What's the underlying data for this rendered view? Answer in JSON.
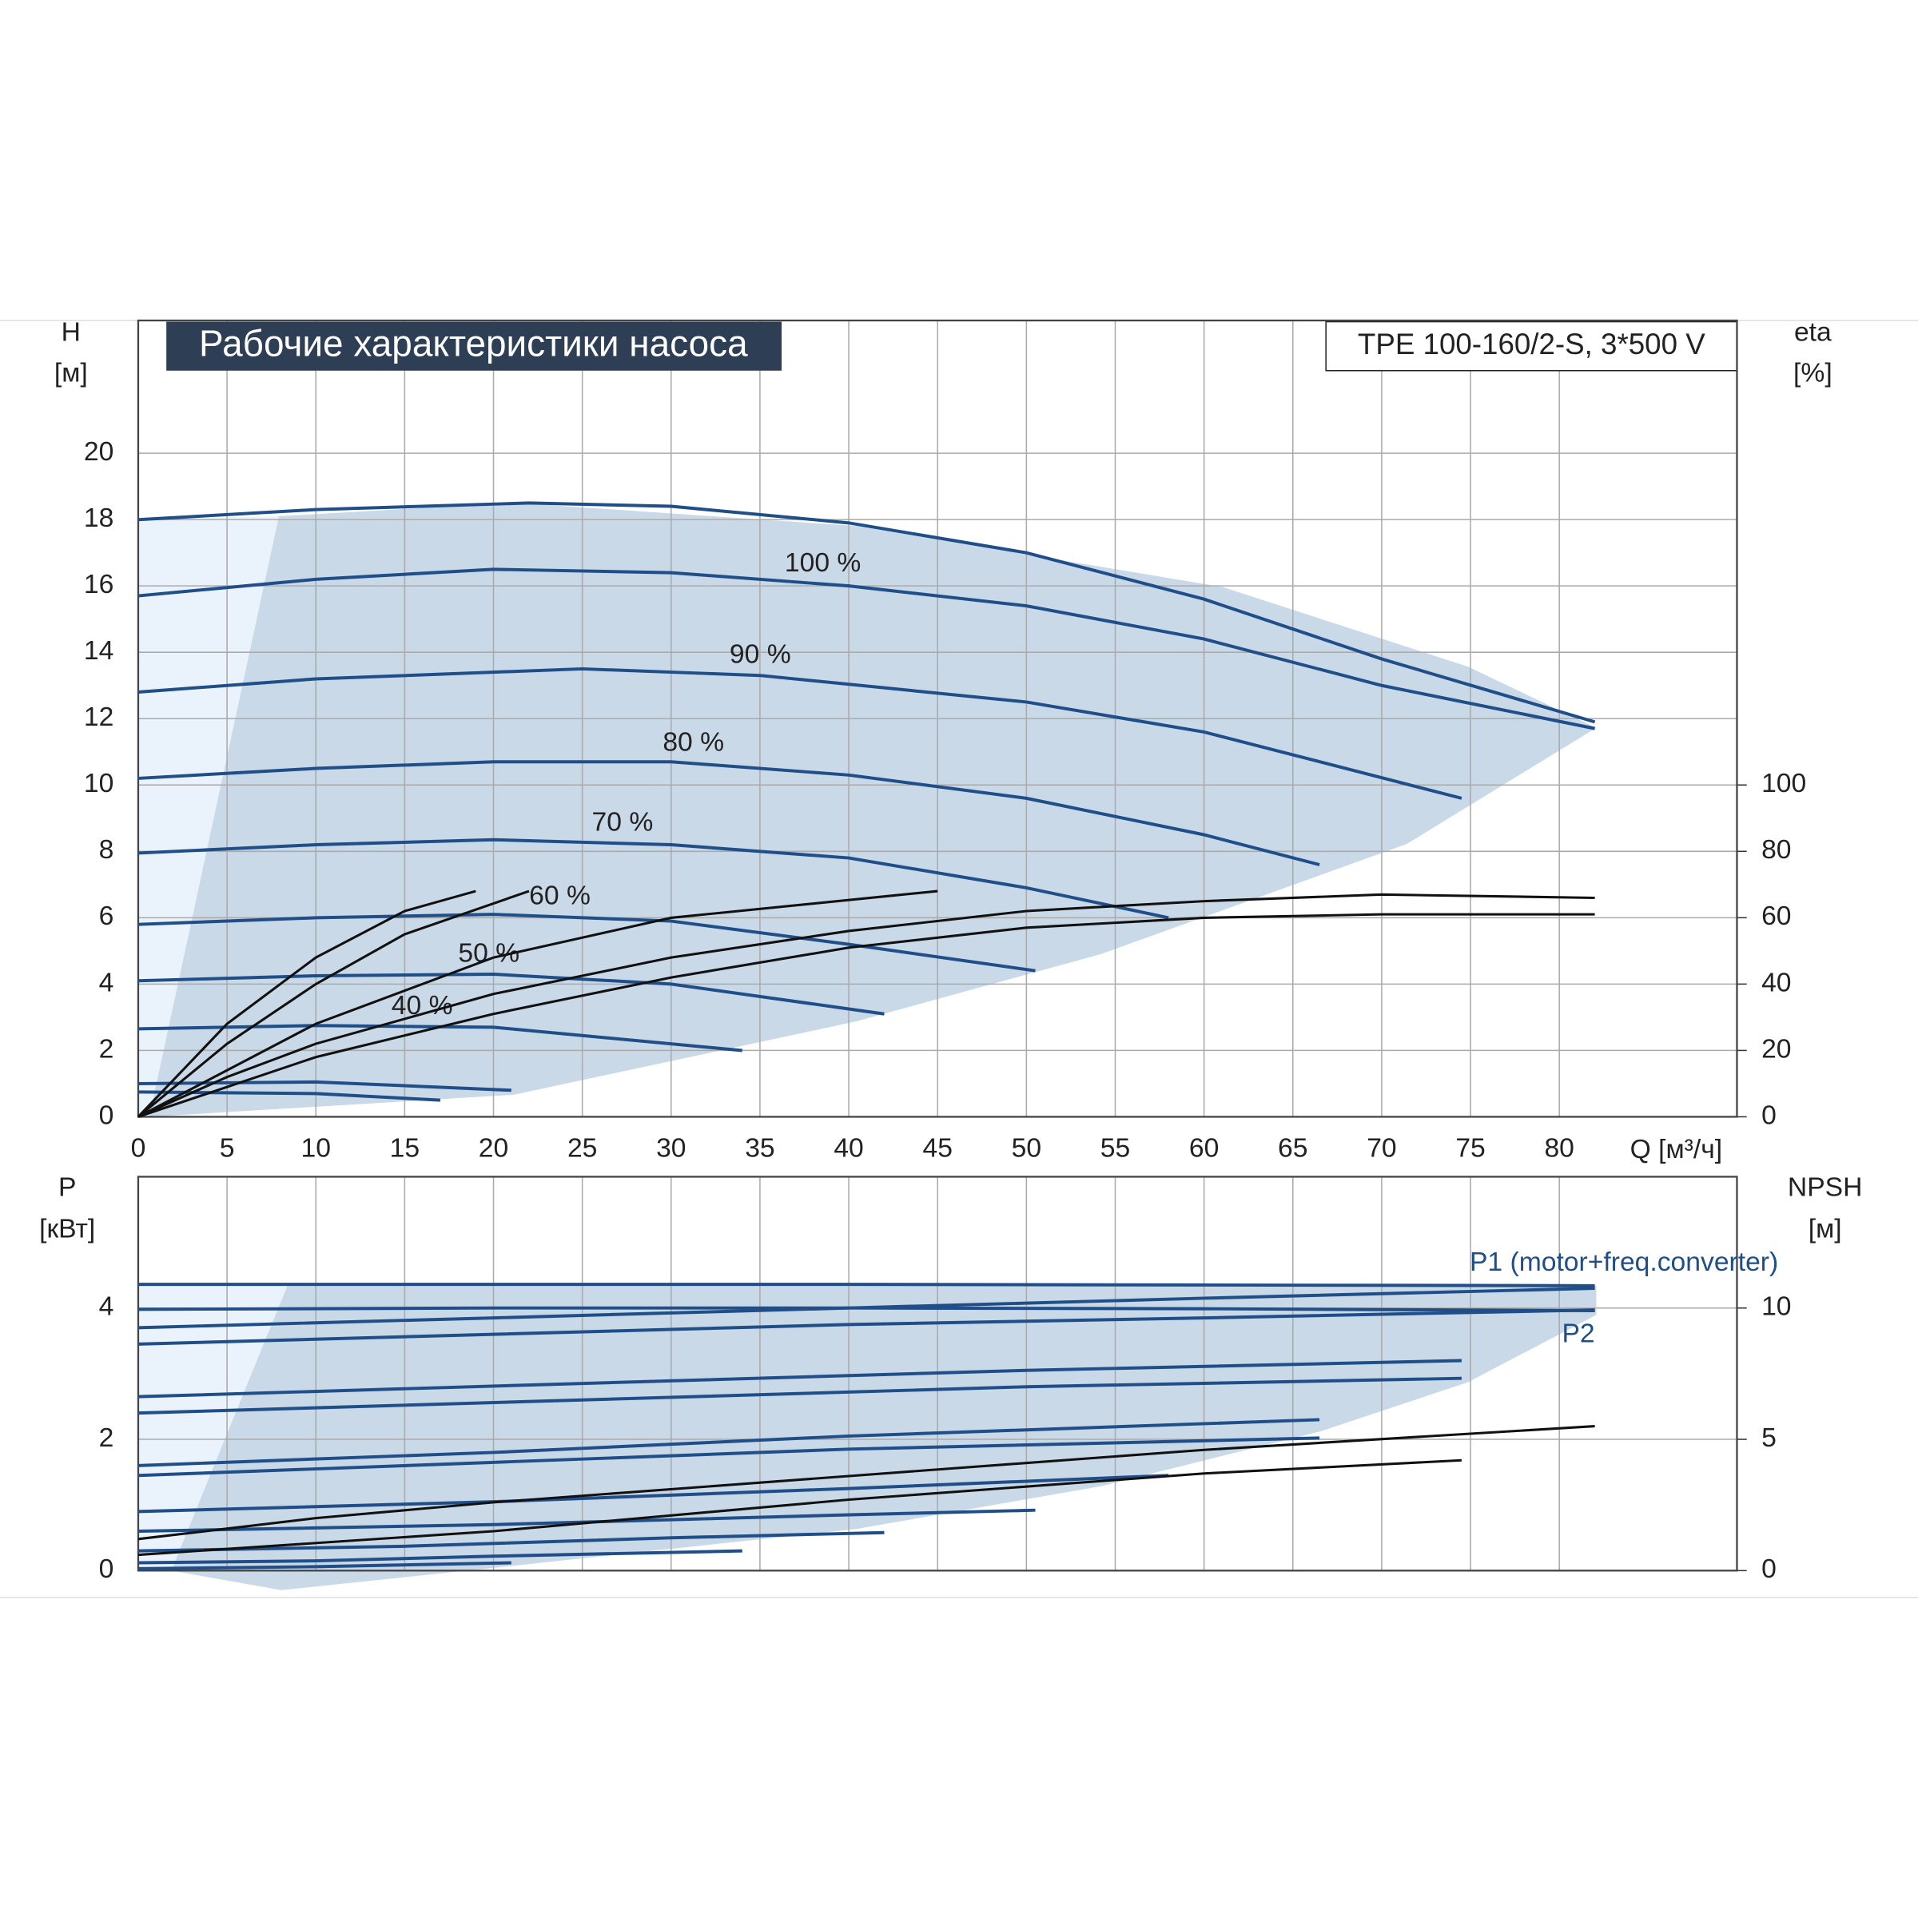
{
  "chart_data": [
    {
      "type": "line",
      "title": "Рабочие характеристики насоса",
      "subtitle": "TPE 100-160/2-S, 3*500 V",
      "xlabel": "Q [м³/ч]",
      "ylabel": "H",
      "yunit": "[м]",
      "y2label": "eta",
      "y2unit": "[%]",
      "xlim": [
        0,
        90
      ],
      "ylim": [
        0,
        24
      ],
      "y2lim": [
        0,
        240
      ],
      "xticks": [
        0,
        5,
        10,
        15,
        20,
        25,
        30,
        35,
        40,
        45,
        50,
        55,
        60,
        65,
        70,
        75,
        80
      ],
      "yticks": [
        0,
        2,
        4,
        6,
        8,
        10,
        12,
        14,
        16,
        18,
        20
      ],
      "y2ticks": [
        0,
        20,
        40,
        60,
        80,
        100
      ],
      "grid": true,
      "series": [
        {
          "color": "#1f4e89",
          "x": [
            0,
            10,
            22,
            30,
            40,
            50,
            60,
            70,
            82
          ],
          "values": [
            18,
            18.3,
            18.5,
            18.4,
            17.9,
            17,
            15.6,
            13.8,
            11.9
          ]
        },
        {
          "name": "100 %",
          "color": "#1f4e89",
          "x": [
            0,
            10,
            20,
            30,
            40,
            50,
            60,
            70,
            82
          ],
          "values": [
            15.7,
            16.2,
            16.5,
            16.4,
            16.0,
            15.4,
            14.4,
            13.0,
            11.7
          ]
        },
        {
          "name": "90 %",
          "color": "#1f4e89",
          "x": [
            0,
            10,
            25,
            35,
            50,
            60,
            74.5
          ],
          "values": [
            12.8,
            13.2,
            13.5,
            13.3,
            12.5,
            11.6,
            9.6
          ]
        },
        {
          "name": "80 %",
          "color": "#1f4e89",
          "x": [
            0,
            10,
            20,
            30,
            40,
            50,
            60,
            66.5
          ],
          "values": [
            10.2,
            10.5,
            10.7,
            10.7,
            10.3,
            9.6,
            8.5,
            7.6
          ]
        },
        {
          "name": "70 %",
          "color": "#1f4e89",
          "x": [
            0,
            10,
            20,
            30,
            40,
            50,
            58
          ],
          "values": [
            7.95,
            8.2,
            8.35,
            8.2,
            7.8,
            6.9,
            6.0
          ]
        },
        {
          "name": "60 %",
          "color": "#1f4e89",
          "x": [
            0,
            10,
            20,
            30,
            40,
            50.5
          ],
          "values": [
            5.8,
            6.0,
            6.1,
            5.9,
            5.2,
            4.4
          ]
        },
        {
          "name": "50 %",
          "color": "#1f4e89",
          "x": [
            0,
            10,
            20,
            30,
            42
          ],
          "values": [
            4.1,
            4.25,
            4.3,
            4.0,
            3.1
          ]
        },
        {
          "name": "40 %",
          "color": "#1f4e89",
          "x": [
            0,
            10,
            20,
            34
          ],
          "values": [
            2.65,
            2.75,
            2.7,
            2.0
          ]
        },
        {
          "color": "#1f4e89",
          "x": [
            0,
            10,
            21
          ],
          "values": [
            1.0,
            1.05,
            0.8
          ]
        },
        {
          "color": "#1f4e89",
          "x": [
            0,
            10,
            17
          ],
          "values": [
            0.75,
            0.7,
            0.5
          ]
        },
        {
          "color": "#111111",
          "axis": "y2",
          "x": [
            0,
            5,
            10,
            20,
            30,
            40,
            50,
            60,
            70,
            82
          ],
          "values": [
            0,
            12,
            22,
            37,
            48,
            56,
            62,
            65,
            67,
            66
          ]
        },
        {
          "color": "#111111",
          "axis": "y2",
          "x": [
            0,
            10,
            20,
            30,
            40,
            50,
            60,
            70,
            82
          ],
          "values": [
            0,
            18,
            31,
            42,
            51,
            57,
            60,
            61,
            61
          ]
        },
        {
          "color": "#111111",
          "axis": "y2",
          "x": [
            0,
            5,
            10,
            15,
            19
          ],
          "values": [
            0,
            28,
            48,
            62,
            68
          ]
        },
        {
          "color": "#111111",
          "axis": "y2",
          "x": [
            0,
            5,
            10,
            15,
            22
          ],
          "values": [
            0,
            22,
            40,
            55,
            68
          ]
        },
        {
          "color": "#111111",
          "axis": "y2",
          "x": [
            0,
            10,
            20,
            30,
            45
          ],
          "values": [
            0,
            28,
            48,
            60,
            68
          ]
        }
      ]
    },
    {
      "type": "line",
      "ylabel": "P",
      "yunit": "[кВт]",
      "y2label": "NPSH",
      "y2unit": "[м]",
      "xlim": [
        0,
        90
      ],
      "ylim": [
        0,
        6
      ],
      "y2lim": [
        0,
        15
      ],
      "yticks": [
        0,
        2,
        4
      ],
      "y2ticks": [
        0,
        5,
        10
      ],
      "grid": true,
      "series": [
        {
          "name": "P1 (motor+freq.converter)",
          "color": "#1f4e89",
          "x": [
            0,
            20,
            40,
            60,
            82
          ],
          "values": [
            4.36,
            4.36,
            4.36,
            4.35,
            4.34
          ]
        },
        {
          "name": "P2",
          "color": "#1f4e89",
          "x": [
            0,
            20,
            40,
            60,
            82
          ],
          "values": [
            3.98,
            4.0,
            4.0,
            3.99,
            3.96
          ]
        },
        {
          "color": "#1f4e89",
          "x": [
            0,
            20,
            40,
            60,
            82
          ],
          "values": [
            3.7,
            3.85,
            4.0,
            4.15,
            4.3
          ]
        },
        {
          "color": "#1f4e89",
          "x": [
            0,
            20,
            40,
            60,
            82
          ],
          "values": [
            3.45,
            3.6,
            3.75,
            3.85,
            3.97
          ]
        },
        {
          "color": "#1f4e89",
          "x": [
            0,
            25,
            50,
            74.5
          ],
          "values": [
            2.65,
            2.85,
            3.05,
            3.2
          ]
        },
        {
          "color": "#1f4e89",
          "x": [
            0,
            25,
            50,
            74.5
          ],
          "values": [
            2.4,
            2.6,
            2.8,
            2.93
          ]
        },
        {
          "color": "#1f4e89",
          "x": [
            0,
            20,
            40,
            66.5
          ],
          "values": [
            1.6,
            1.8,
            2.05,
            2.3
          ]
        },
        {
          "color": "#1f4e89",
          "x": [
            0,
            20,
            40,
            66.5
          ],
          "values": [
            1.45,
            1.65,
            1.85,
            2.02
          ]
        },
        {
          "color": "#1f4e89",
          "x": [
            0,
            20,
            40,
            58
          ],
          "values": [
            0.9,
            1.05,
            1.25,
            1.45
          ]
        },
        {
          "color": "#1f4e89",
          "x": [
            0,
            20,
            40,
            50.5
          ],
          "values": [
            0.6,
            0.7,
            0.85,
            0.92
          ]
        },
        {
          "color": "#1f4e89",
          "x": [
            0,
            15,
            30,
            42
          ],
          "values": [
            0.3,
            0.37,
            0.5,
            0.58
          ]
        },
        {
          "color": "#1f4e89",
          "x": [
            0,
            10,
            20,
            34
          ],
          "values": [
            0.12,
            0.15,
            0.22,
            0.3
          ]
        },
        {
          "color": "#1f4e89",
          "x": [
            0,
            10,
            21
          ],
          "values": [
            0.03,
            0.06,
            0.12
          ]
        },
        {
          "color": "#111111",
          "axis": "y2",
          "x": [
            0,
            10,
            20,
            40,
            60,
            82
          ],
          "values": [
            1.2,
            2.0,
            2.6,
            3.6,
            4.6,
            5.5
          ]
        },
        {
          "color": "#111111",
          "axis": "y2",
          "x": [
            0,
            20,
            40,
            60,
            74.5
          ],
          "values": [
            0.6,
            1.5,
            2.7,
            3.7,
            4.2
          ]
        }
      ]
    }
  ]
}
